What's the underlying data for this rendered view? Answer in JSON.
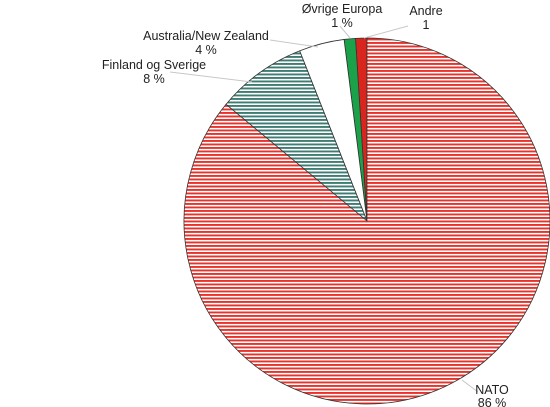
{
  "chart_data": {
    "type": "pie",
    "slices": [
      {
        "label": "NATO",
        "value_label": "86 %",
        "value": 86,
        "color": "#e8332c",
        "pattern": "horizontal-stripes"
      },
      {
        "label": "Finland og Sverige",
        "value_label": "8 %",
        "value": 8,
        "color": "#3f7d74",
        "pattern": "horizontal-stripes"
      },
      {
        "label": "Australia/New Zealand",
        "value_label": "4 %",
        "value": 4,
        "color": "#ffffff",
        "pattern": "solid"
      },
      {
        "label": "Øvrige Europa",
        "value_label": "1 %",
        "value": 1,
        "color": "#1aa14a",
        "pattern": "solid"
      },
      {
        "label": "Andre",
        "value_label": "1",
        "value": 1,
        "color": "#d8251d",
        "pattern": "solid"
      }
    ],
    "legend": "none",
    "labels": "outside with leader lines"
  }
}
